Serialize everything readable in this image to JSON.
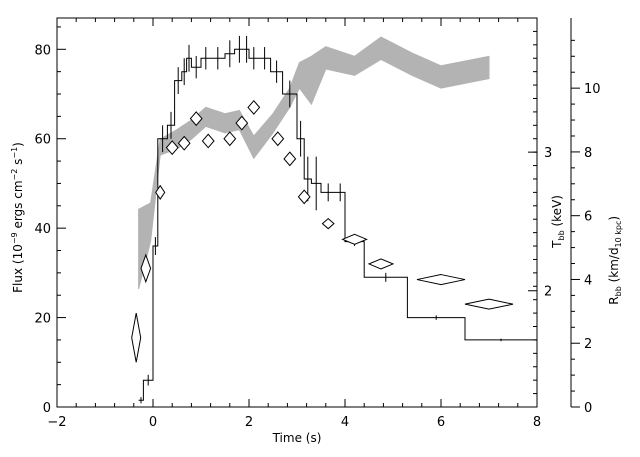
{
  "chart_data": {
    "type": "line",
    "xlabel": "Time (s)",
    "ylabel_left": "Flux (10",
    "ylabel_left_exp1": "−9",
    "ylabel_left_mid": " ergs cm",
    "ylabel_left_exp2": "−2",
    "ylabel_left_mid2": " s",
    "ylabel_left_exp3": "−1",
    "ylabel_left_end": ")",
    "ylabel_tbb": "T",
    "ylabel_tbb_sub": "bb",
    "ylabel_tbb_end": " (keV)",
    "ylabel_rbb": "R",
    "ylabel_rbb_sub": "bb",
    "ylabel_rbb_mid": " (km/d",
    "ylabel_rbb_sub2": "10 kpc",
    "ylabel_rbb_end": ")",
    "xlim": [
      -2,
      8
    ],
    "ylim_flux": [
      0,
      87
    ],
    "ylim_radius": [
      0,
      12.2
    ],
    "xticks": [
      -2,
      0,
      2,
      4,
      6,
      8
    ],
    "xtick_labels": [
      "−2",
      "0",
      "2",
      "4",
      "6",
      "8"
    ],
    "flux_ticks": [
      0,
      20,
      40,
      60,
      80
    ],
    "flux_tick_labels": [
      "0",
      "20",
      "40",
      "60",
      "80"
    ],
    "radius_ticks": [
      0,
      2,
      4,
      6,
      8,
      10
    ],
    "radius_tick_labels": [
      "0",
      "2",
      "4",
      "6",
      "8",
      "10"
    ],
    "temperature_ticks": [
      2,
      3
    ],
    "temperature_tick_labels": [
      "2",
      "3"
    ],
    "temperature_axis_flux_positions": [
      26,
      57
    ],
    "flux_histogram": {
      "edges": [
        -0.3,
        -0.2,
        0.0,
        0.1,
        0.3,
        0.45,
        0.6,
        0.7,
        0.8,
        1.0,
        1.2,
        1.5,
        1.7,
        1.9,
        2.0,
        2.2,
        2.45,
        2.7,
        3.0,
        3.15,
        3.3,
        3.5,
        3.8,
        4.0,
        4.4,
        5.3,
        6.5,
        8.0
      ],
      "values": [
        1.5,
        6,
        36,
        60,
        63,
        73,
        75,
        78,
        76,
        78,
        78,
        79,
        80,
        80,
        78,
        78,
        75,
        70,
        60,
        51,
        50,
        48,
        48,
        37,
        29,
        20,
        15
      ],
      "errors": [
        0.7,
        1.2,
        2,
        3,
        3,
        3,
        3,
        3,
        2.5,
        2.5,
        2.5,
        3,
        3,
        3,
        2.5,
        2.5,
        2.5,
        3,
        4,
        5,
        6,
        2,
        2,
        1,
        1,
        0.5,
        0.3
      ]
    },
    "temperature_points": [
      {
        "t": -0.35,
        "flux": 15.5,
        "terr": 0.05,
        "ferr": 5.5
      },
      {
        "t": -0.15,
        "flux": 31,
        "terr": 0.1,
        "ferr": 3
      },
      {
        "t": 0.15,
        "flux": 48,
        "terr": 0.08,
        "ferr": 1.5
      },
      {
        "t": 0.4,
        "flux": 58,
        "terr": 0.12,
        "ferr": 1.5
      },
      {
        "t": 0.65,
        "flux": 59,
        "terr": 0.12,
        "ferr": 1.5
      },
      {
        "t": 0.9,
        "flux": 64.5,
        "terr": 0.12,
        "ferr": 1.5
      },
      {
        "t": 1.15,
        "flux": 59.5,
        "terr": 0.12,
        "ferr": 1.5
      },
      {
        "t": 1.6,
        "flux": 60,
        "terr": 0.12,
        "ferr": 1.5
      },
      {
        "t": 1.85,
        "flux": 63.5,
        "terr": 0.12,
        "ferr": 1.5
      },
      {
        "t": 2.1,
        "flux": 67,
        "terr": 0.12,
        "ferr": 1.5
      },
      {
        "t": 2.6,
        "flux": 60,
        "terr": 0.12,
        "ferr": 1.5
      },
      {
        "t": 2.85,
        "flux": 55.5,
        "terr": 0.12,
        "ferr": 1.5
      },
      {
        "t": 3.15,
        "flux": 47,
        "terr": 0.12,
        "ferr": 1.5
      },
      {
        "t": 3.65,
        "flux": 41,
        "terr": 0.12,
        "ferr": 1
      },
      {
        "t": 4.2,
        "flux": 37.5,
        "terr": 0.25,
        "ferr": 1
      },
      {
        "t": 4.75,
        "flux": 32,
        "terr": 0.25,
        "ferr": 1
      },
      {
        "t": 6.0,
        "flux": 28.5,
        "terr": 0.5,
        "ferr": 1
      },
      {
        "t": 7.0,
        "flux": 23,
        "terr": 0.5,
        "ferr": 1
      }
    ],
    "radius_band": [
      {
        "t": -0.3,
        "lo": 3.7,
        "hi": 6.2
      },
      {
        "t": -0.05,
        "lo": 5.2,
        "hi": 6.4
      },
      {
        "t": 0.15,
        "lo": 7.9,
        "hi": 8.4
      },
      {
        "t": 0.5,
        "lo": 8.1,
        "hi": 8.7
      },
      {
        "t": 0.8,
        "lo": 8.4,
        "hi": 9.0
      },
      {
        "t": 1.1,
        "lo": 8.8,
        "hi": 9.4
      },
      {
        "t": 1.5,
        "lo": 8.6,
        "hi": 9.2
      },
      {
        "t": 1.8,
        "lo": 8.7,
        "hi": 9.3
      },
      {
        "t": 2.1,
        "lo": 7.8,
        "hi": 8.5
      },
      {
        "t": 2.5,
        "lo": 8.6,
        "hi": 9.2
      },
      {
        "t": 2.85,
        "lo": 9.4,
        "hi": 10.0
      },
      {
        "t": 3.05,
        "lo": 10.0,
        "hi": 10.8
      },
      {
        "t": 3.3,
        "lo": 9.5,
        "hi": 11.0
      },
      {
        "t": 3.6,
        "lo": 10.6,
        "hi": 11.3
      },
      {
        "t": 4.2,
        "lo": 10.4,
        "hi": 11.0
      },
      {
        "t": 4.75,
        "lo": 10.9,
        "hi": 11.6
      },
      {
        "t": 5.4,
        "lo": 10.4,
        "hi": 11.1
      },
      {
        "t": 6.0,
        "lo": 10.0,
        "hi": 10.7
      },
      {
        "t": 7.0,
        "lo": 10.3,
        "hi": 11.0
      }
    ],
    "colors": {
      "band": "#b3b3b3",
      "ink": "#000000",
      "background": "#ffffff"
    }
  }
}
